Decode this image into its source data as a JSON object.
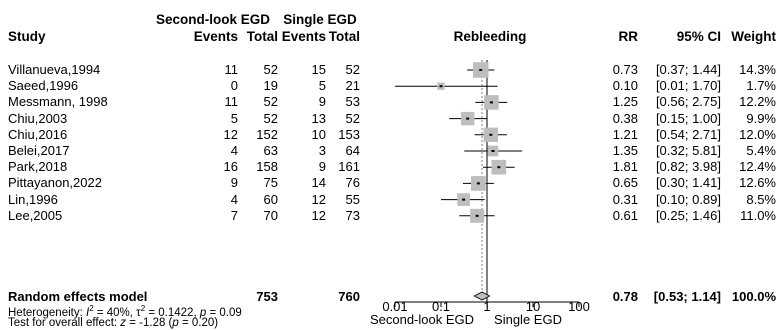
{
  "headers": {
    "group1": "Second-look EGD",
    "group2": "Single EGD",
    "study": "Study",
    "events": "Events",
    "total": "Total",
    "outcome": "Rebleeding",
    "rr": "RR",
    "ci": "95% CI",
    "weight": "Weight"
  },
  "rows": [
    {
      "study": "Villanueva,1994",
      "e1": "11",
      "t1": "52",
      "e2": "15",
      "t2": "52",
      "rr": "0.73",
      "ci": "[0.37; 1.44]",
      "w": "14.3%"
    },
    {
      "study": "Saeed,1996",
      "e1": "0",
      "t1": "19",
      "e2": "5",
      "t2": "21",
      "rr": "0.10",
      "ci": "[0.01; 1.70]",
      "w": "1.7%"
    },
    {
      "study": "Messmann, 1998",
      "e1": "11",
      "t1": "52",
      "e2": "9",
      "t2": "53",
      "rr": "1.25",
      "ci": "[0.56; 2.75]",
      "w": "12.2%"
    },
    {
      "study": "Chiu,2003",
      "e1": "5",
      "t1": "52",
      "e2": "13",
      "t2": "52",
      "rr": "0.38",
      "ci": "[0.15; 1.00]",
      "w": "9.9%"
    },
    {
      "study": "Chiu,2016",
      "e1": "12",
      "t1": "152",
      "e2": "10",
      "t2": "153",
      "rr": "1.21",
      "ci": "[0.54; 2.71]",
      "w": "12.0%"
    },
    {
      "study": "Belei,2017",
      "e1": "4",
      "t1": "63",
      "e2": "3",
      "t2": "64",
      "rr": "1.35",
      "ci": "[0.32; 5.81]",
      "w": "5.4%"
    },
    {
      "study": "Park,2018",
      "e1": "16",
      "t1": "158",
      "e2": "9",
      "t2": "161",
      "rr": "1.81",
      "ci": "[0.82; 3.98]",
      "w": "12.4%"
    },
    {
      "study": "Pittayanon,2022",
      "e1": "9",
      "t1": "75",
      "e2": "14",
      "t2": "76",
      "rr": "0.65",
      "ci": "[0.30; 1.41]",
      "w": "12.6%"
    },
    {
      "study": "Lin,1996",
      "e1": "4",
      "t1": "60",
      "e2": "12",
      "t2": "55",
      "rr": "0.31",
      "ci": "[0.10; 0.89]",
      "w": "8.5%"
    },
    {
      "study": "Lee,2005",
      "e1": "7",
      "t1": "70",
      "e2": "12",
      "t2": "73",
      "rr": "0.61",
      "ci": "[0.25; 1.46]",
      "w": "11.0%"
    }
  ],
  "summary": {
    "label": "Random effects model",
    "t1": "753",
    "t2": "760",
    "rr": "0.78",
    "ci": "[0.53; 1.14]",
    "w": "100.0%"
  },
  "heterogeneity": {
    "prefix": "Heterogeneity: ",
    "i2": "I",
    "i2_value": " = 40%, ",
    "tau": "τ",
    "tau_value": " = 0.1422, ",
    "p": "p",
    "p_value": " = 0.09"
  },
  "overall_test": {
    "prefix": "Test for overall effect: ",
    "z": "z",
    "z_value": " = -1.28 (",
    "p": "p",
    "p_value": " = 0.20)"
  },
  "axis": {
    "ticks": [
      "0.01",
      "0.1",
      "1",
      "10",
      "100"
    ],
    "label_left": "Second-look EGD",
    "label_right": "Single EGD"
  },
  "chart_data": {
    "type": "scatter",
    "scale": "log",
    "xlim": [
      0.01,
      100
    ],
    "reference_line": 1,
    "pooled_estimate": 0.78,
    "points": [
      {
        "study": "Villanueva,1994",
        "rr": 0.73,
        "lo": 0.37,
        "hi": 1.44,
        "weight": 14.3
      },
      {
        "study": "Saeed,1996",
        "rr": 0.1,
        "lo": 0.01,
        "hi": 1.7,
        "weight": 1.7
      },
      {
        "study": "Messmann, 1998",
        "rr": 1.25,
        "lo": 0.56,
        "hi": 2.75,
        "weight": 12.2
      },
      {
        "study": "Chiu,2003",
        "rr": 0.38,
        "lo": 0.15,
        "hi": 1.0,
        "weight": 9.9
      },
      {
        "study": "Chiu,2016",
        "rr": 1.21,
        "lo": 0.54,
        "hi": 2.71,
        "weight": 12.0
      },
      {
        "study": "Belei,2017",
        "rr": 1.35,
        "lo": 0.32,
        "hi": 5.81,
        "weight": 5.4
      },
      {
        "study": "Park,2018",
        "rr": 1.81,
        "lo": 0.82,
        "hi": 3.98,
        "weight": 12.4
      },
      {
        "study": "Pittayanon,2022",
        "rr": 0.65,
        "lo": 0.3,
        "hi": 1.41,
        "weight": 12.6
      },
      {
        "study": "Lin,1996",
        "rr": 0.31,
        "lo": 0.1,
        "hi": 0.89,
        "weight": 8.5
      },
      {
        "study": "Lee,2005",
        "rr": 0.61,
        "lo": 0.25,
        "hi": 1.46,
        "weight": 11.0
      }
    ],
    "summary": {
      "rr": 0.78,
      "lo": 0.53,
      "hi": 1.14,
      "weight": 100.0
    },
    "colors": {
      "box": "#bdbdbd",
      "line": "#000000",
      "diamond": "#bdbdbd",
      "reference": "#000000",
      "pooled_line": "#7f7f7f"
    }
  }
}
